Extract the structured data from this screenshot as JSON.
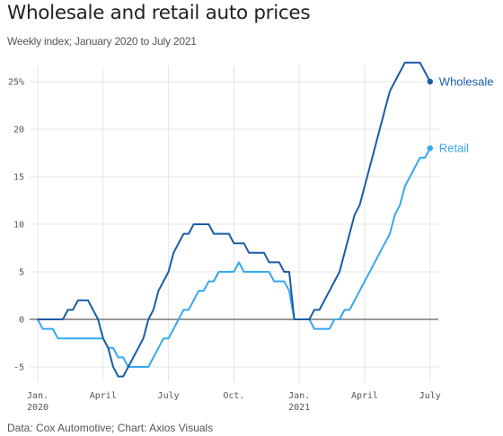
{
  "title": "Wholesale and retail auto prices",
  "subtitle": "Weekly index; January 2020 to July 2021",
  "source": "Data: Cox Automotive; Chart: Axios Visuals",
  "colors": {
    "wholesale": "#1a5ca8",
    "retail": "#35a8f0",
    "grid": "#e6e6e6",
    "zero_line": "#333333"
  },
  "chart_data": {
    "type": "line",
    "title": "Wholesale and retail auto prices",
    "subtitle": "Weekly index; January 2020 to July 2021",
    "x_unit": "weeks since Jan. 2020",
    "xlim": [
      -2,
      80
    ],
    "ylim": [
      -7,
      28
    ],
    "y_ticks": [
      {
        "value": -5,
        "label": "-5"
      },
      {
        "value": 0,
        "label": "0"
      },
      {
        "value": 5,
        "label": "5"
      },
      {
        "value": 10,
        "label": "10"
      },
      {
        "value": 15,
        "label": "15"
      },
      {
        "value": 20,
        "label": "20"
      },
      {
        "value": 25,
        "label": "25%"
      }
    ],
    "x_ticks": [
      {
        "value": 0,
        "label": "Jan.",
        "sublabel": "2020"
      },
      {
        "value": 13,
        "label": "April",
        "sublabel": ""
      },
      {
        "value": 26,
        "label": "July",
        "sublabel": ""
      },
      {
        "value": 39,
        "label": "Oct.",
        "sublabel": ""
      },
      {
        "value": 52,
        "label": "Jan.",
        "sublabel": "2021"
      },
      {
        "value": 65,
        "label": "April",
        "sublabel": ""
      },
      {
        "value": 78,
        "label": "July",
        "sublabel": ""
      }
    ],
    "grid": true,
    "legend": "direct labels at line ends",
    "series": [
      {
        "name": "Wholesale",
        "color": "#1a5ca8",
        "points": [
          [
            0,
            0
          ],
          [
            1,
            0
          ],
          [
            2,
            0
          ],
          [
            3,
            0
          ],
          [
            4,
            0
          ],
          [
            5,
            0
          ],
          [
            6,
            1
          ],
          [
            7,
            1
          ],
          [
            8,
            2
          ],
          [
            9,
            2
          ],
          [
            10,
            2
          ],
          [
            11,
            1
          ],
          [
            12,
            0
          ],
          [
            13,
            -2
          ],
          [
            14,
            -3
          ],
          [
            15,
            -5
          ],
          [
            16,
            -6
          ],
          [
            17,
            -6
          ],
          [
            18,
            -5
          ],
          [
            19,
            -4
          ],
          [
            20,
            -3
          ],
          [
            21,
            -2
          ],
          [
            22,
            0
          ],
          [
            23,
            1
          ],
          [
            24,
            3
          ],
          [
            25,
            4
          ],
          [
            26,
            5
          ],
          [
            27,
            7
          ],
          [
            28,
            8
          ],
          [
            29,
            9
          ],
          [
            30,
            9
          ],
          [
            31,
            10
          ],
          [
            32,
            10
          ],
          [
            33,
            10
          ],
          [
            34,
            10
          ],
          [
            35,
            9
          ],
          [
            36,
            9
          ],
          [
            37,
            9
          ],
          [
            38,
            9
          ],
          [
            39,
            8
          ],
          [
            40,
            8
          ],
          [
            41,
            8
          ],
          [
            42,
            7
          ],
          [
            43,
            7
          ],
          [
            44,
            7
          ],
          [
            45,
            7
          ],
          [
            46,
            6
          ],
          [
            47,
            6
          ],
          [
            48,
            6
          ],
          [
            49,
            5
          ],
          [
            50,
            5
          ],
          [
            51,
            0
          ],
          [
            52,
            0
          ],
          [
            53,
            0
          ],
          [
            54,
            0
          ],
          [
            55,
            1
          ],
          [
            56,
            1
          ],
          [
            57,
            2
          ],
          [
            58,
            3
          ],
          [
            59,
            4
          ],
          [
            60,
            5
          ],
          [
            61,
            7
          ],
          [
            62,
            9
          ],
          [
            63,
            11
          ],
          [
            64,
            12
          ],
          [
            65,
            14
          ],
          [
            66,
            16
          ],
          [
            67,
            18
          ],
          [
            68,
            20
          ],
          [
            69,
            22
          ],
          [
            70,
            24
          ],
          [
            71,
            25
          ],
          [
            72,
            26
          ],
          [
            73,
            27
          ],
          [
            74,
            27
          ],
          [
            75,
            27
          ],
          [
            76,
            27
          ],
          [
            77,
            26
          ],
          [
            78,
            25
          ]
        ]
      },
      {
        "name": "Retail",
        "color": "#35a8f0",
        "points": [
          [
            0,
            0
          ],
          [
            1,
            -1
          ],
          [
            2,
            -1
          ],
          [
            3,
            -1
          ],
          [
            4,
            -2
          ],
          [
            5,
            -2
          ],
          [
            6,
            -2
          ],
          [
            7,
            -2
          ],
          [
            8,
            -2
          ],
          [
            9,
            -2
          ],
          [
            10,
            -2
          ],
          [
            11,
            -2
          ],
          [
            12,
            -2
          ],
          [
            13,
            -2
          ],
          [
            14,
            -3
          ],
          [
            15,
            -3
          ],
          [
            16,
            -4
          ],
          [
            17,
            -4
          ],
          [
            18,
            -5
          ],
          [
            19,
            -5
          ],
          [
            20,
            -5
          ],
          [
            21,
            -5
          ],
          [
            22,
            -5
          ],
          [
            23,
            -4
          ],
          [
            24,
            -3
          ],
          [
            25,
            -2
          ],
          [
            26,
            -2
          ],
          [
            27,
            -1
          ],
          [
            28,
            0
          ],
          [
            29,
            1
          ],
          [
            30,
            1
          ],
          [
            31,
            2
          ],
          [
            32,
            3
          ],
          [
            33,
            3
          ],
          [
            34,
            4
          ],
          [
            35,
            4
          ],
          [
            36,
            5
          ],
          [
            37,
            5
          ],
          [
            38,
            5
          ],
          [
            39,
            5
          ],
          [
            40,
            6
          ],
          [
            41,
            5
          ],
          [
            42,
            5
          ],
          [
            43,
            5
          ],
          [
            44,
            5
          ],
          [
            45,
            5
          ],
          [
            46,
            5
          ],
          [
            47,
            4
          ],
          [
            48,
            4
          ],
          [
            49,
            4
          ],
          [
            50,
            3
          ],
          [
            51,
            0
          ],
          [
            52,
            0
          ],
          [
            53,
            0
          ],
          [
            54,
            0
          ],
          [
            55,
            -1
          ],
          [
            56,
            -1
          ],
          [
            57,
            -1
          ],
          [
            58,
            -1
          ],
          [
            59,
            0
          ],
          [
            60,
            0
          ],
          [
            61,
            1
          ],
          [
            62,
            1
          ],
          [
            63,
            2
          ],
          [
            64,
            3
          ],
          [
            65,
            4
          ],
          [
            66,
            5
          ],
          [
            67,
            6
          ],
          [
            68,
            7
          ],
          [
            69,
            8
          ],
          [
            70,
            9
          ],
          [
            71,
            11
          ],
          [
            72,
            12
          ],
          [
            73,
            14
          ],
          [
            74,
            15
          ],
          [
            75,
            16
          ],
          [
            76,
            17
          ],
          [
            77,
            17
          ],
          [
            78,
            18
          ]
        ]
      }
    ]
  }
}
